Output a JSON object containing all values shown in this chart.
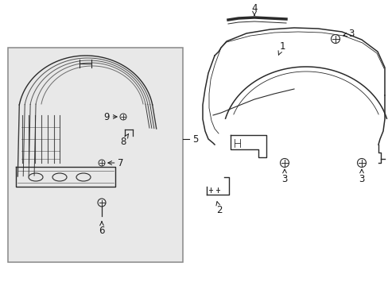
{
  "bg_color": "#ffffff",
  "box_bg": "#e8e8e8",
  "box_edge": "#888888",
  "line_color": "#2a2a2a",
  "text_color": "#1a1a1a",
  "font_size": 8.5,
  "arrow_lw": 0.7,
  "part_lw": 1.0
}
